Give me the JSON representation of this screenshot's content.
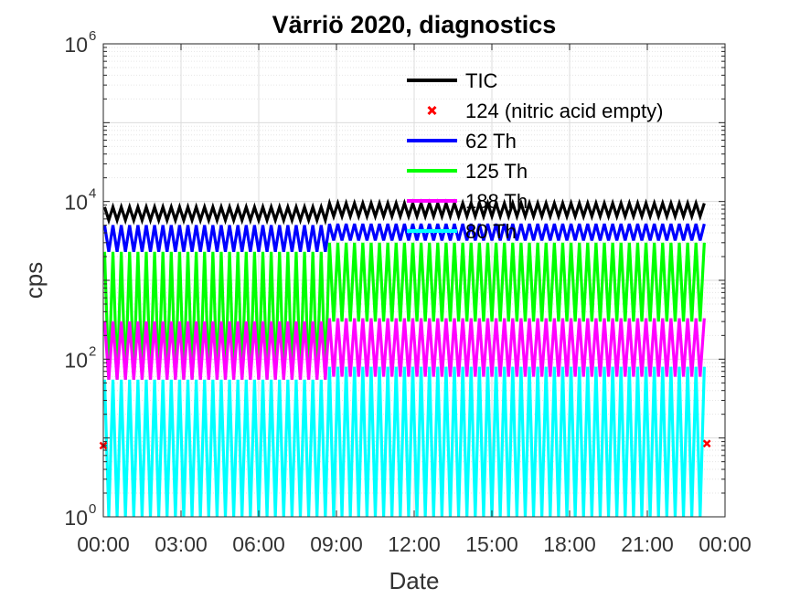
{
  "chart_data": {
    "type": "line",
    "title": "Värriö 2020, diagnostics",
    "xlabel": "Date",
    "ylabel": "cps",
    "yscale": "log",
    "ylim": [
      1,
      1000000
    ],
    "xlim_hours": [
      0,
      24
    ],
    "x_tick_labels": [
      "00:00",
      "03:00",
      "06:00",
      "09:00",
      "12:00",
      "15:00",
      "18:00",
      "21:00",
      "00:00"
    ],
    "y_ticks": [
      {
        "base": "10",
        "exp": "0"
      },
      {
        "base": "10",
        "exp": "2"
      },
      {
        "base": "10",
        "exp": "4"
      },
      {
        "base": "10",
        "exp": "6"
      }
    ],
    "grid": true,
    "legend_position": "top-center",
    "data_start_hour": 0.05,
    "data_end_hour": 23.2,
    "cycle_count": 72,
    "regime_change_hour": 8.7,
    "series": [
      {
        "name": "TIC",
        "color": "#000000",
        "style": "line",
        "high_before": 8500,
        "high_after": 9500,
        "low_before": 5800,
        "low_after": 6500
      },
      {
        "name": "124 (nitric acid empty)",
        "color": "#ff0000",
        "style": "x-marker",
        "values_hours": [
          0.0,
          23.3
        ],
        "values": [
          8,
          8.5
        ]
      },
      {
        "name": "62 Th",
        "color": "#0000ff",
        "style": "line",
        "high_before": 5000,
        "high_after": 5200,
        "low_before": 2300,
        "low_after": 3200
      },
      {
        "name": "125 Th",
        "color": "#00ff00",
        "style": "line",
        "high_before": 2300,
        "high_after": 3000,
        "low_before": 55,
        "low_after": 300
      },
      {
        "name": "188 Th",
        "color": "#ff00ff",
        "style": "line",
        "high_before": 300,
        "high_after": 330,
        "low_before": 55,
        "low_after": 60
      },
      {
        "name": "80 Th",
        "color": "#00ffff",
        "style": "line",
        "high_before": 55,
        "high_after": 80,
        "low_before": 1,
        "low_after": 1
      }
    ]
  }
}
